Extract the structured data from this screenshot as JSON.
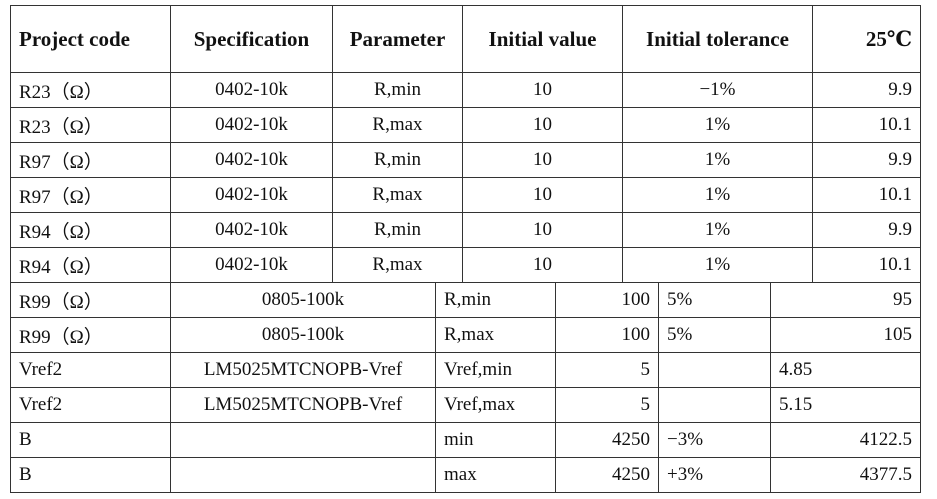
{
  "table": {
    "header": [
      "Project code",
      "Specification",
      "Parameter",
      "Initial value",
      "Initial tolerance",
      "25℃"
    ],
    "rows": [
      [
        "R23（Ω）",
        "0402-10k",
        "R,min",
        "10",
        "−1%",
        "9.9"
      ],
      [
        "R23（Ω）",
        "0402-10k",
        "R,max",
        "10",
        "1%",
        "10.1"
      ],
      [
        "R97（Ω）",
        "0402-10k",
        "R,min",
        "10",
        "1%",
        "9.9"
      ],
      [
        "R97（Ω）",
        "0402-10k",
        "R,max",
        "10",
        "1%",
        "10.1"
      ],
      [
        "R94（Ω）",
        "0402-10k",
        "R,min",
        "10",
        "1%",
        "9.9"
      ],
      [
        "R94（Ω）",
        "0402-10k",
        "R,max",
        "10",
        "1%",
        "10.1"
      ],
      [
        "R99（Ω）",
        "0805-100k",
        "R,min",
        "100",
        "5%",
        "95"
      ],
      [
        "R99（Ω）",
        "0805-100k",
        "R,max",
        "100",
        "5%",
        "105"
      ],
      [
        "Vref2",
        "LM5025MTCNOPB-Vref",
        "Vref,min",
        "5",
        null,
        "4.85"
      ],
      [
        "Vref2",
        "LM5025MTCNOPB-Vref",
        "Vref,max",
        "5",
        null,
        "5.15"
      ],
      [
        "B",
        null,
        "min",
        "4250",
        "−3%",
        "4122.5"
      ],
      [
        "B",
        null,
        "max",
        "4250",
        "+3%",
        "4377.5"
      ]
    ]
  }
}
